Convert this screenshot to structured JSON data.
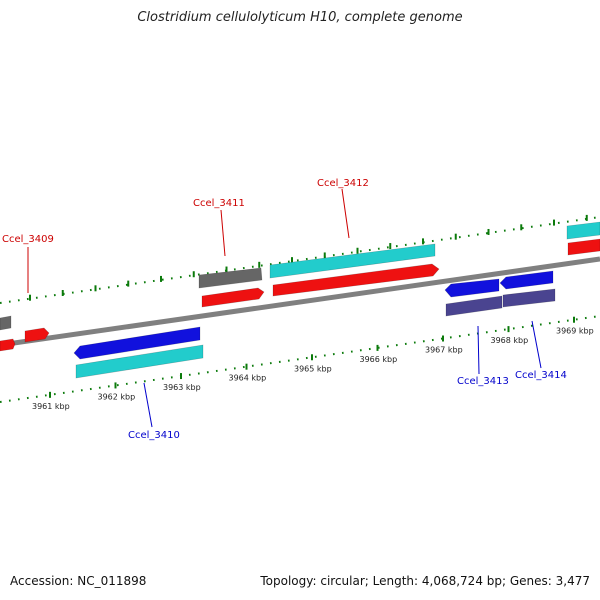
{
  "title": "Clostridium cellulolyticum H10, complete genome",
  "footer": {
    "accession": "Accession: NC_011898",
    "summary": "Topology: circular; Length: 4,068,724 bp; Genes: 3,477"
  },
  "colors": {
    "backbone": "#808080",
    "ticks": "#0b7a0b",
    "tick_label": "#222222",
    "label_forward": "#cc0000",
    "label_reverse": "#0000cc",
    "gene_red": "#ee1111",
    "gene_cyan": "#22cccc",
    "gene_blue": "#1111dd",
    "gene_gray": "#666666",
    "gene_slate": "#4a4490"
  },
  "ticks": [
    {
      "kbp": 3961,
      "label": "3961 kbp"
    },
    {
      "kbp": 3962,
      "label": "3962 kbp"
    },
    {
      "kbp": 3963,
      "label": "3963 kbp"
    },
    {
      "kbp": 3964,
      "label": "3964 kbp"
    },
    {
      "kbp": 3965,
      "label": "3965 kbp"
    },
    {
      "kbp": 3966,
      "label": "3966 kbp"
    },
    {
      "kbp": 3967,
      "label": "3967 kbp"
    },
    {
      "kbp": 3968,
      "label": "3968 kbp"
    },
    {
      "kbp": 3969,
      "label": "3969 kbp"
    }
  ],
  "gene_labels": [
    {
      "name": "Ccel_3409",
      "strand": "forward"
    },
    {
      "name": "Ccel_3410",
      "strand": "reverse"
    },
    {
      "name": "Ccel_3411",
      "strand": "forward"
    },
    {
      "name": "Ccel_3412",
      "strand": "forward"
    },
    {
      "name": "Ccel_3413",
      "strand": "reverse"
    },
    {
      "name": "Ccel_3414",
      "strand": "reverse"
    }
  ]
}
